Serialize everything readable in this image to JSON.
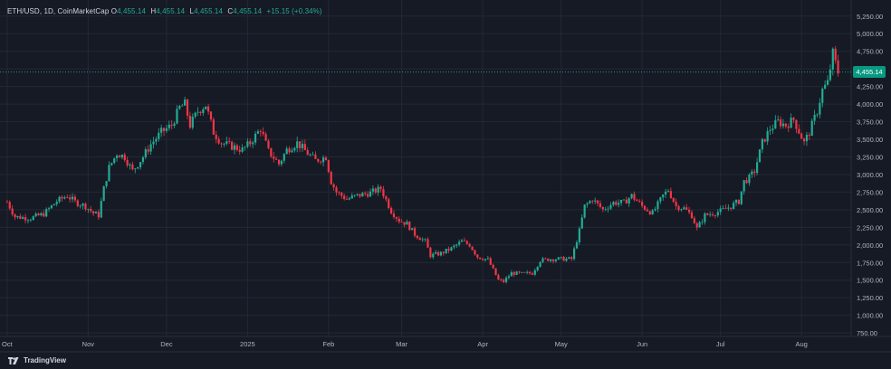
{
  "legend": {
    "symbol": "ETH/USD, 1D, CoinMarketCap",
    "open_key": "O",
    "open": "4,455.14",
    "high_key": "H",
    "high": "4,455.14",
    "low_key": "L",
    "low": "4,455.14",
    "close_key": "C",
    "close": "4,455.14",
    "change": "+15.15 (+0.34%)"
  },
  "last_price_label": "4,455.14",
  "branding": {
    "name": "TradingView"
  },
  "colors": {
    "background": "#161a25",
    "grid": "#232836",
    "up": "#22ab94",
    "down": "#f23645",
    "axis_text": "#b2b5be",
    "price_line": "#22ab94",
    "price_tag": "#089981"
  },
  "chart_data": {
    "type": "candlestick",
    "title": "ETH/USD, 1D, CoinMarketCap",
    "ylim": [
      700,
      5350
    ],
    "y_ticks": [
      750,
      1000,
      1250,
      1500,
      1750,
      2000,
      2250,
      2500,
      2750,
      3000,
      3250,
      3500,
      3750,
      4000,
      4250,
      4500,
      4750,
      5000,
      5250
    ],
    "y_tick_labels": [
      "750.00",
      "1,000.00",
      "1,250.00",
      "1,500.00",
      "1,750.00",
      "2,000.00",
      "2,250.00",
      "2,500.00",
      "2,750.00",
      "3,000.00",
      "3,250.00",
      "3,500.00",
      "3,750.00",
      "4,000.00",
      "4,250.00",
      "4,500.00",
      "4,750.00",
      "5,000.00",
      "5,250.00"
    ],
    "x_labels": [
      {
        "label": "Oct",
        "date": "2024-10-01"
      },
      {
        "label": "Nov",
        "date": "2024-11-01"
      },
      {
        "label": "Dec",
        "date": "2024-12-01"
      },
      {
        "label": "2025",
        "date": "2025-01-01"
      },
      {
        "label": "Feb",
        "date": "2025-02-01"
      },
      {
        "label": "Mar",
        "date": "2025-03-01"
      },
      {
        "label": "Apr",
        "date": "2025-04-01"
      },
      {
        "label": "May",
        "date": "2025-05-01"
      },
      {
        "label": "Jun",
        "date": "2025-06-01"
      },
      {
        "label": "Jul",
        "date": "2025-07-01"
      },
      {
        "label": "Aug",
        "date": "2025-08-01"
      }
    ],
    "last_price": 4455.14,
    "series_anchors": [
      {
        "date": "2024-10-01",
        "close": 2610
      },
      {
        "date": "2024-10-04",
        "close": 2400
      },
      {
        "date": "2024-10-10",
        "close": 2380
      },
      {
        "date": "2024-10-15",
        "close": 2440
      },
      {
        "date": "2024-10-20",
        "close": 2620
      },
      {
        "date": "2024-10-24",
        "close": 2700
      },
      {
        "date": "2024-10-27",
        "close": 2610
      },
      {
        "date": "2024-10-31",
        "close": 2550
      },
      {
        "date": "2024-11-03",
        "close": 2450
      },
      {
        "date": "2024-11-05",
        "close": 2420
      },
      {
        "date": "2024-11-07",
        "close": 2800
      },
      {
        "date": "2024-11-09",
        "close": 3100
      },
      {
        "date": "2024-11-12",
        "close": 3300
      },
      {
        "date": "2024-11-15",
        "close": 3250
      },
      {
        "date": "2024-11-18",
        "close": 3050
      },
      {
        "date": "2024-11-22",
        "close": 3250
      },
      {
        "date": "2024-11-25",
        "close": 3430
      },
      {
        "date": "2024-11-29",
        "close": 3600
      },
      {
        "date": "2024-12-03",
        "close": 3700
      },
      {
        "date": "2024-12-06",
        "close": 3950
      },
      {
        "date": "2024-12-08",
        "close": 4000
      },
      {
        "date": "2024-12-10",
        "close": 3700
      },
      {
        "date": "2024-12-13",
        "close": 3900
      },
      {
        "date": "2024-12-16",
        "close": 3990
      },
      {
        "date": "2024-12-19",
        "close": 3600
      },
      {
        "date": "2024-12-22",
        "close": 3450
      },
      {
        "date": "2024-12-26",
        "close": 3400
      },
      {
        "date": "2024-12-30",
        "close": 3350
      },
      {
        "date": "2025-01-02",
        "close": 3450
      },
      {
        "date": "2025-01-06",
        "close": 3650
      },
      {
        "date": "2025-01-09",
        "close": 3330
      },
      {
        "date": "2025-01-13",
        "close": 3150
      },
      {
        "date": "2025-01-16",
        "close": 3350
      },
      {
        "date": "2025-01-20",
        "close": 3450
      },
      {
        "date": "2025-01-24",
        "close": 3300
      },
      {
        "date": "2025-01-27",
        "close": 3200
      },
      {
        "date": "2025-01-31",
        "close": 3250
      },
      {
        "date": "2025-02-02",
        "close": 2900
      },
      {
        "date": "2025-02-04",
        "close": 2750
      },
      {
        "date": "2025-02-08",
        "close": 2650
      },
      {
        "date": "2025-02-12",
        "close": 2700
      },
      {
        "date": "2025-02-17",
        "close": 2740
      },
      {
        "date": "2025-02-21",
        "close": 2800
      },
      {
        "date": "2025-02-25",
        "close": 2480
      },
      {
        "date": "2025-02-28",
        "close": 2350
      },
      {
        "date": "2025-03-03",
        "close": 2300
      },
      {
        "date": "2025-03-06",
        "close": 2150
      },
      {
        "date": "2025-03-10",
        "close": 2050
      },
      {
        "date": "2025-03-12",
        "close": 1850
      },
      {
        "date": "2025-03-16",
        "close": 1880
      },
      {
        "date": "2025-03-20",
        "close": 1950
      },
      {
        "date": "2025-03-24",
        "close": 2050
      },
      {
        "date": "2025-03-27",
        "close": 2000
      },
      {
        "date": "2025-03-30",
        "close": 1830
      },
      {
        "date": "2025-04-03",
        "close": 1790
      },
      {
        "date": "2025-04-07",
        "close": 1500
      },
      {
        "date": "2025-04-09",
        "close": 1480
      },
      {
        "date": "2025-04-12",
        "close": 1600
      },
      {
        "date": "2025-04-16",
        "close": 1590
      },
      {
        "date": "2025-04-20",
        "close": 1600
      },
      {
        "date": "2025-04-23",
        "close": 1780
      },
      {
        "date": "2025-04-27",
        "close": 1800
      },
      {
        "date": "2025-05-01",
        "close": 1800
      },
      {
        "date": "2025-05-05",
        "close": 1800
      },
      {
        "date": "2025-05-08",
        "close": 2200
      },
      {
        "date": "2025-05-10",
        "close": 2550
      },
      {
        "date": "2025-05-13",
        "close": 2650
      },
      {
        "date": "2025-05-17",
        "close": 2500
      },
      {
        "date": "2025-05-21",
        "close": 2600
      },
      {
        "date": "2025-05-25",
        "close": 2600
      },
      {
        "date": "2025-05-28",
        "close": 2700
      },
      {
        "date": "2025-06-01",
        "close": 2550
      },
      {
        "date": "2025-06-05",
        "close": 2450
      },
      {
        "date": "2025-06-09",
        "close": 2700
      },
      {
        "date": "2025-06-11",
        "close": 2780
      },
      {
        "date": "2025-06-14",
        "close": 2550
      },
      {
        "date": "2025-06-17",
        "close": 2520
      },
      {
        "date": "2025-06-20",
        "close": 2420
      },
      {
        "date": "2025-06-22",
        "close": 2230
      },
      {
        "date": "2025-06-25",
        "close": 2420
      },
      {
        "date": "2025-06-28",
        "close": 2450
      },
      {
        "date": "2025-07-01",
        "close": 2480
      },
      {
        "date": "2025-07-05",
        "close": 2550
      },
      {
        "date": "2025-07-08",
        "close": 2620
      },
      {
        "date": "2025-07-10",
        "close": 2900
      },
      {
        "date": "2025-07-12",
        "close": 2950
      },
      {
        "date": "2025-07-14",
        "close": 3050
      },
      {
        "date": "2025-07-17",
        "close": 3450
      },
      {
        "date": "2025-07-20",
        "close": 3650
      },
      {
        "date": "2025-07-23",
        "close": 3750
      },
      {
        "date": "2025-07-26",
        "close": 3700
      },
      {
        "date": "2025-07-29",
        "close": 3780
      },
      {
        "date": "2025-08-02",
        "close": 3450
      },
      {
        "date": "2025-08-04",
        "close": 3600
      },
      {
        "date": "2025-08-07",
        "close": 3900
      },
      {
        "date": "2025-08-09",
        "close": 4200
      },
      {
        "date": "2025-08-11",
        "close": 4300
      },
      {
        "date": "2025-08-13",
        "close": 4720
      },
      {
        "date": "2025-08-14",
        "close": 4580
      },
      {
        "date": "2025-08-15",
        "close": 4455
      }
    ]
  }
}
